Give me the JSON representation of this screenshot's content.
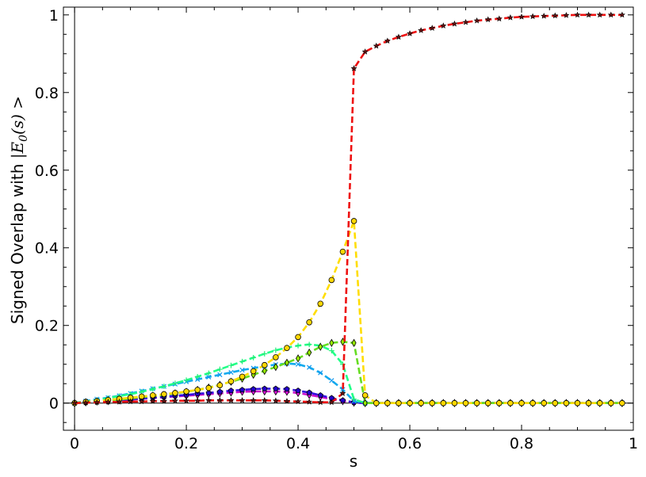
{
  "chart_data": {
    "type": "line",
    "title": "",
    "xlabel": "s",
    "ylabel": {
      "prefix": "Signed Overlap with ",
      "math": "|E",
      "sub": "0",
      "suffix": "(s) >"
    },
    "xlim": [
      -0.02,
      1.0
    ],
    "ylim": [
      -0.07,
      1.02
    ],
    "xticks": [
      0,
      0.2,
      0.4,
      0.6,
      0.8,
      1.0
    ],
    "xtick_labels": [
      "0",
      "0.2",
      "0.4",
      "0.6",
      "0.8",
      "1"
    ],
    "yticks": [
      0,
      0.2,
      0.4,
      0.6,
      0.8,
      1.0
    ],
    "ytick_labels": [
      "0",
      "0.2",
      "0.4",
      "0.6",
      "0.8",
      "1"
    ],
    "zero_line": true,
    "grid": false,
    "legend": "none",
    "x": [
      0,
      0.02,
      0.04,
      0.06,
      0.08,
      0.1,
      0.12,
      0.14,
      0.16,
      0.18,
      0.2,
      0.22,
      0.24,
      0.26,
      0.28,
      0.3,
      0.32,
      0.34,
      0.36,
      0.38,
      0.4,
      0.42,
      0.44,
      0.46,
      0.48,
      0.5,
      0.52,
      0.54,
      0.56,
      0.58,
      0.6,
      0.62,
      0.64,
      0.66,
      0.68,
      0.7,
      0.72,
      0.74,
      0.76,
      0.78,
      0.8,
      0.82,
      0.84,
      0.86,
      0.88,
      0.9,
      0.92,
      0.94,
      0.96,
      0.98
    ],
    "series": [
      {
        "line_color": "#ee1111",
        "marker": "star",
        "marker_color": "#661111",
        "values": [
          0,
          0.001,
          0.002,
          0.003,
          0.003,
          0.004,
          0.004,
          0.005,
          0.005,
          0.006,
          0.006,
          0.006,
          0.007,
          0.007,
          0.007,
          0.007,
          0.007,
          0.007,
          0.006,
          0.005,
          0.004,
          0.003,
          0.002,
          0.002,
          0.025,
          0.862,
          0.905,
          0.92,
          0.933,
          0.943,
          0.952,
          0.96,
          0.966,
          0.972,
          0.977,
          0.981,
          0.985,
          0.988,
          0.99,
          0.993,
          0.995,
          0.996,
          0.997,
          0.998,
          0.999,
          1.0,
          1.0,
          1.0,
          1.0,
          1.0
        ]
      },
      {
        "line_color": "#ffdd00",
        "marker": "circle",
        "marker_color": "#ffd700",
        "values": [
          0,
          0.003,
          0.005,
          0.008,
          0.011,
          0.014,
          0.017,
          0.02,
          0.023,
          0.026,
          0.03,
          0.034,
          0.039,
          0.046,
          0.056,
          0.068,
          0.082,
          0.098,
          0.118,
          0.142,
          0.17,
          0.208,
          0.256,
          0.317,
          0.39,
          0.469,
          0.02,
          0,
          0,
          0,
          0,
          0,
          0,
          0,
          0,
          0,
          0,
          0,
          0,
          0,
          0,
          0,
          0,
          0,
          0,
          0,
          0,
          0,
          0,
          0
        ]
      },
      {
        "line_color": "#66dd22",
        "marker": "diamond",
        "marker_color": "#99ee00",
        "values": [
          0,
          0.002,
          0.004,
          0.007,
          0.009,
          0.012,
          0.015,
          0.018,
          0.021,
          0.025,
          0.029,
          0.034,
          0.04,
          0.047,
          0.055,
          0.063,
          0.073,
          0.083,
          0.093,
          0.104,
          0.115,
          0.13,
          0.145,
          0.155,
          0.158,
          0.155,
          0,
          0,
          0,
          0,
          0,
          0,
          0,
          0,
          0,
          0,
          0,
          0,
          0,
          0,
          0,
          0,
          0,
          0,
          0,
          0,
          0,
          0,
          0,
          0
        ]
      },
      {
        "line_color": "#22ff88",
        "marker": "plus",
        "marker_color": "#22ee77",
        "values": [
          0,
          0.004,
          0.008,
          0.013,
          0.018,
          0.023,
          0.029,
          0.036,
          0.043,
          0.051,
          0.059,
          0.068,
          0.077,
          0.087,
          0.097,
          0.107,
          0.117,
          0.127,
          0.136,
          0.143,
          0.148,
          0.151,
          0.148,
          0.135,
          0.1,
          0.01,
          0,
          0,
          0,
          0,
          0,
          0,
          0,
          0,
          0,
          0,
          0,
          0,
          0,
          0,
          0,
          0,
          0,
          0,
          0,
          0,
          0,
          0,
          0,
          0
        ]
      },
      {
        "line_color": "#11aaee",
        "marker": "x",
        "marker_color": "#1199ee",
        "values": [
          0,
          0.005,
          0.01,
          0.014,
          0.019,
          0.025,
          0.031,
          0.037,
          0.043,
          0.049,
          0.055,
          0.061,
          0.067,
          0.073,
          0.079,
          0.085,
          0.09,
          0.095,
          0.099,
          0.102,
          0.1,
          0.092,
          0.078,
          0.058,
          0.035,
          0.005,
          0,
          0,
          0,
          0,
          0,
          0,
          0,
          0,
          0,
          0,
          0,
          0,
          0,
          0,
          0,
          0,
          0,
          0,
          0,
          0,
          0,
          0,
          0,
          0
        ]
      },
      {
        "line_color": "#3311dd",
        "marker": "pentagon",
        "marker_color": "#2200cc",
        "values": [
          0,
          0.002,
          0.004,
          0.006,
          0.008,
          0.01,
          0.012,
          0.014,
          0.016,
          0.019,
          0.021,
          0.024,
          0.026,
          0.029,
          0.032,
          0.034,
          0.036,
          0.037,
          0.037,
          0.036,
          0.032,
          0.027,
          0.02,
          0.013,
          0.007,
          0.002,
          0,
          0,
          0,
          0,
          0,
          0,
          0,
          0,
          0,
          0,
          0,
          0,
          0,
          0,
          0,
          0,
          0,
          0,
          0,
          0,
          0,
          0,
          0,
          0
        ]
      },
      {
        "line_color": "#cc11cc",
        "marker": "diamond",
        "marker_color": "#ee11ee",
        "values": [
          0,
          0.002,
          0.004,
          0.005,
          0.007,
          0.009,
          0.011,
          0.013,
          0.015,
          0.017,
          0.019,
          0.021,
          0.023,
          0.025,
          0.027,
          0.029,
          0.03,
          0.03,
          0.03,
          0.029,
          0.026,
          0.021,
          0.016,
          0.01,
          0.005,
          0.001,
          0,
          0,
          0,
          0,
          0,
          0,
          0,
          0,
          0,
          0,
          0,
          0,
          0,
          0,
          0,
          0,
          0,
          0,
          0,
          0,
          0,
          0,
          0,
          0
        ]
      }
    ]
  }
}
